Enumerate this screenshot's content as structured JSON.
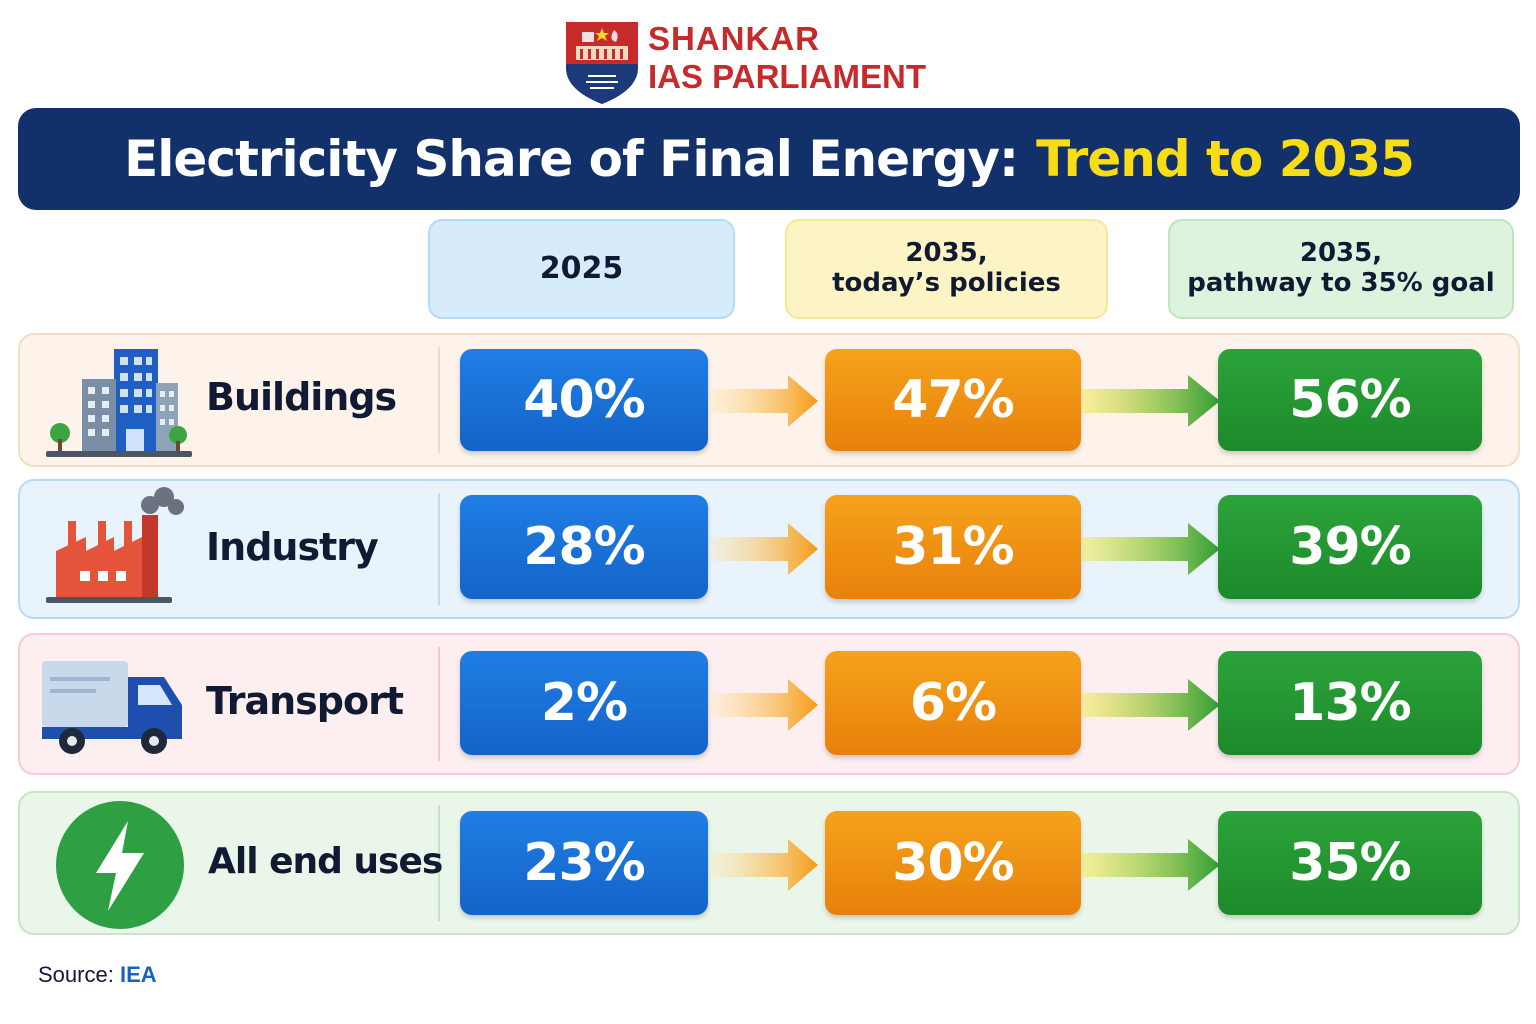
{
  "logo": {
    "line1": "SHANKAR",
    "line2": "IAS PARLIAMENT"
  },
  "title": {
    "main": "Electricity Share of Final Energy:",
    "accent": "Trend to 2035"
  },
  "columns": [
    {
      "line1": "2025",
      "line2": ""
    },
    {
      "line1": "2035,",
      "line2": "today’s policies"
    },
    {
      "line1": "2035,",
      "line2": "pathway to 35% goal"
    }
  ],
  "rows": [
    {
      "label": "Buildings",
      "icon": "buildings-icon",
      "v2025": "40%",
      "v2035_policies": "47%",
      "v2035_goal": "56%"
    },
    {
      "label": "Industry",
      "icon": "factory-icon",
      "v2025": "28%",
      "v2035_policies": "31%",
      "v2035_goal": "39%"
    },
    {
      "label": "Transport",
      "icon": "truck-icon",
      "v2025": "2%",
      "v2035_policies": "6%",
      "v2035_goal": "13%"
    },
    {
      "label": "All end uses",
      "icon": "lightning-icon",
      "v2025": "23%",
      "v2035_policies": "30%",
      "v2035_goal": "35%"
    }
  ],
  "chart_data": {
    "type": "table",
    "title": "Electricity Share of Final Energy: Trend to 2035",
    "categories": [
      "Buildings",
      "Industry",
      "Transport",
      "All end uses"
    ],
    "series": [
      {
        "name": "2025",
        "values": [
          40,
          28,
          2,
          23
        ]
      },
      {
        "name": "2035, today’s policies",
        "values": [
          47,
          31,
          6,
          30
        ]
      },
      {
        "name": "2035, pathway to 35% goal",
        "values": [
          56,
          39,
          13,
          35
        ]
      }
    ],
    "unit": "%"
  },
  "source": {
    "label": "Source:",
    "value": "IEA"
  },
  "colors": {
    "banner": "#12306a",
    "title_accent": "#f7dc16",
    "pill_2025": "#1a72d8",
    "pill_policies": "#ef9214",
    "pill_goal": "#24972f",
    "row_buildings_bg": "#fdf3ea",
    "row_industry_bg": "#e8f3fc",
    "row_transport_bg": "#fdeef0",
    "row_all_bg": "#ebf6ea"
  }
}
